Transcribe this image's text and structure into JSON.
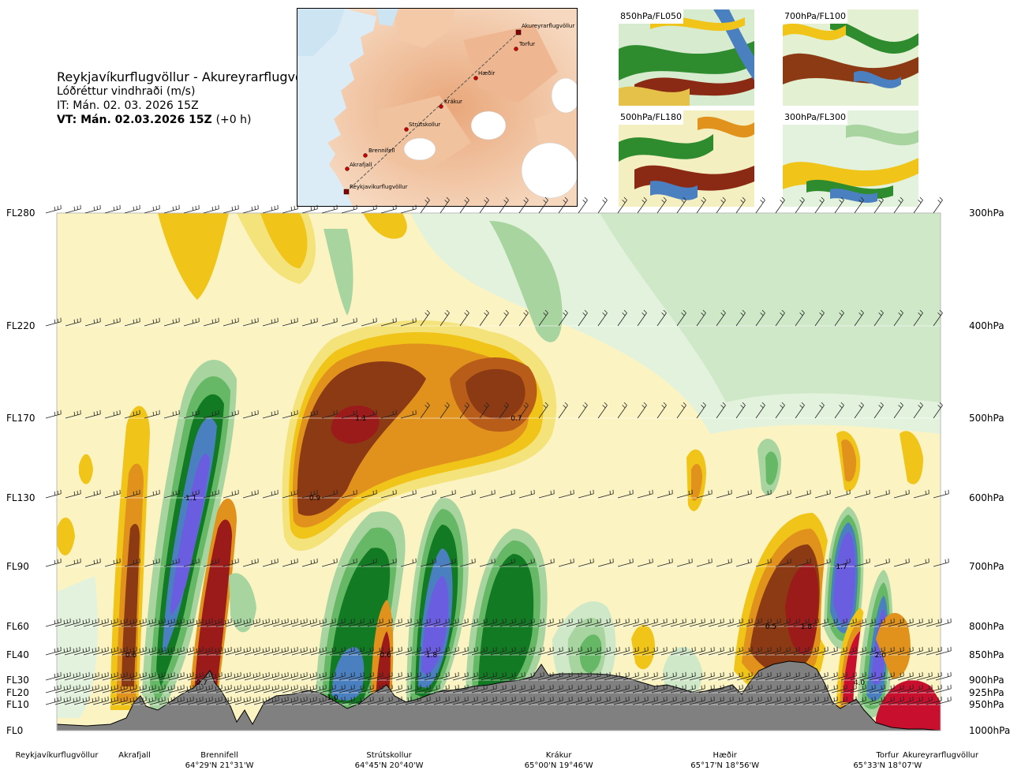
{
  "header": {
    "title": "Reykjavíkurflugvöllur - Akureyrarflugvöllur",
    "subtitle": "Lóðréttur vindhraði (m/s)",
    "issue_time": "IT: Mán. 02. 03. 2026 15Z",
    "valid_time": "VT: Mán. 02.03.2026 15Z",
    "valid_offset": "(+0 h)"
  },
  "route_map": {
    "points": [
      {
        "name": "Akureyrarflugvöllur"
      },
      {
        "name": "Torfur"
      },
      {
        "name": "Hæðir"
      },
      {
        "name": "Krákur"
      },
      {
        "name": "Strútskollur"
      },
      {
        "name": "Brennifell"
      },
      {
        "name": "Akrafjall"
      },
      {
        "name": "Reykjavíkurflugvöllur"
      }
    ]
  },
  "level_panels": [
    {
      "label": "850hPa/FL050"
    },
    {
      "label": "700hPa/FL100"
    },
    {
      "label": "500hPa/FL180"
    },
    {
      "label": "300hPa/FL300"
    }
  ],
  "chart_data": {
    "type": "heatmap",
    "title": "Lóðréttur vindhraði (m/s)",
    "flight_levels": [
      "FL280",
      "FL220",
      "FL170",
      "FL130",
      "FL90",
      "FL60",
      "FL40",
      "FL30",
      "FL20",
      "FL10",
      "FL0"
    ],
    "pressure_levels": [
      "300hPa",
      "400hPa",
      "500hPa",
      "600hPa",
      "700hPa",
      "800hPa",
      "850hPa",
      "900hPa",
      "925hPa",
      "950hPa",
      "1000hPa"
    ],
    "pressure_values_hpa": [
      300,
      400,
      500,
      600,
      700,
      800,
      850,
      900,
      925,
      950,
      1000
    ],
    "x_range_km": [
      0,
      250
    ],
    "waypoints": [
      {
        "name": "Reykjavíkurflugvöllur",
        "coord": "",
        "km": 0
      },
      {
        "name": "Akrafjall",
        "coord": "",
        "km": 22
      },
      {
        "name": "Brennifell",
        "coord": "64°29'N 21°31'W",
        "km": 46
      },
      {
        "name": "Strútskollur",
        "coord": "64°45'N 20°40'W",
        "km": 94
      },
      {
        "name": "Krákur",
        "coord": "65°00'N 19°46'W",
        "km": 142
      },
      {
        "name": "Hæðir",
        "coord": "65°17'N 18°56'W",
        "km": 189
      },
      {
        "name": "Torfur",
        "coord": "65°33'N 18°07'W",
        "km": 235
      },
      {
        "name": "Akureyrarflugvöllur",
        "coord": "",
        "km": 245
      }
    ],
    "labelled_values": [
      {
        "label": "1.1",
        "value": 1.1,
        "km": 38,
        "hpa": 600
      },
      {
        "label": "0.6",
        "value": 0.6,
        "km": 21,
        "hpa": 850
      },
      {
        "label": "0.7",
        "value": -0.7,
        "km": 41,
        "hpa": 905
      },
      {
        "label": "1.1",
        "value": -1.1,
        "km": 86,
        "hpa": 500
      },
      {
        "label": "0.7",
        "value": -0.7,
        "km": 130,
        "hpa": 500
      },
      {
        "label": "0.9",
        "value": -0.9,
        "km": 73,
        "hpa": 600
      },
      {
        "label": "0.6",
        "value": -0.6,
        "km": 93,
        "hpa": 850
      },
      {
        "label": "1.8",
        "value": 1.8,
        "km": 106,
        "hpa": 850
      },
      {
        "label": "1.0",
        "value": 1.0,
        "km": 78,
        "hpa": 935
      },
      {
        "label": "0.5",
        "value": -0.5,
        "km": 202,
        "hpa": 800
      },
      {
        "label": "1.8",
        "value": -1.8,
        "km": 212,
        "hpa": 800
      },
      {
        "label": "1.7",
        "value": 1.7,
        "km": 222,
        "hpa": 700
      },
      {
        "label": "2.0",
        "value": 2.0,
        "km": 233,
        "hpa": 850
      },
      {
        "label": "4.0",
        "value": -4.0,
        "km": 227,
        "hpa": 905
      }
    ],
    "color_scale": [
      {
        "min": -4.0,
        "color": "#c8102e"
      },
      {
        "min": -1.5,
        "color": "#9b1b1b"
      },
      {
        "min": -1.0,
        "color": "#8b3a14"
      },
      {
        "min": -0.7,
        "color": "#b85c1a"
      },
      {
        "min": -0.5,
        "color": "#e0921c"
      },
      {
        "min": -0.3,
        "color": "#f0c419"
      },
      {
        "min": -0.2,
        "color": "#f4e27a"
      },
      {
        "min": -0.1,
        "color": "#fbf4c2"
      },
      {
        "min": 0.1,
        "color": "#e3f2dc"
      },
      {
        "min": 0.2,
        "color": "#cfe8c8"
      },
      {
        "min": 0.3,
        "color": "#a8d4a0"
      },
      {
        "min": 0.5,
        "color": "#66b866"
      },
      {
        "min": 0.7,
        "color": "#1e8f2e"
      },
      {
        "min": 0.9,
        "color": "#137a24"
      },
      {
        "min": 1.0,
        "color": "#4a7fc0"
      },
      {
        "min": 1.5,
        "color": "#6b5de0"
      }
    ]
  }
}
